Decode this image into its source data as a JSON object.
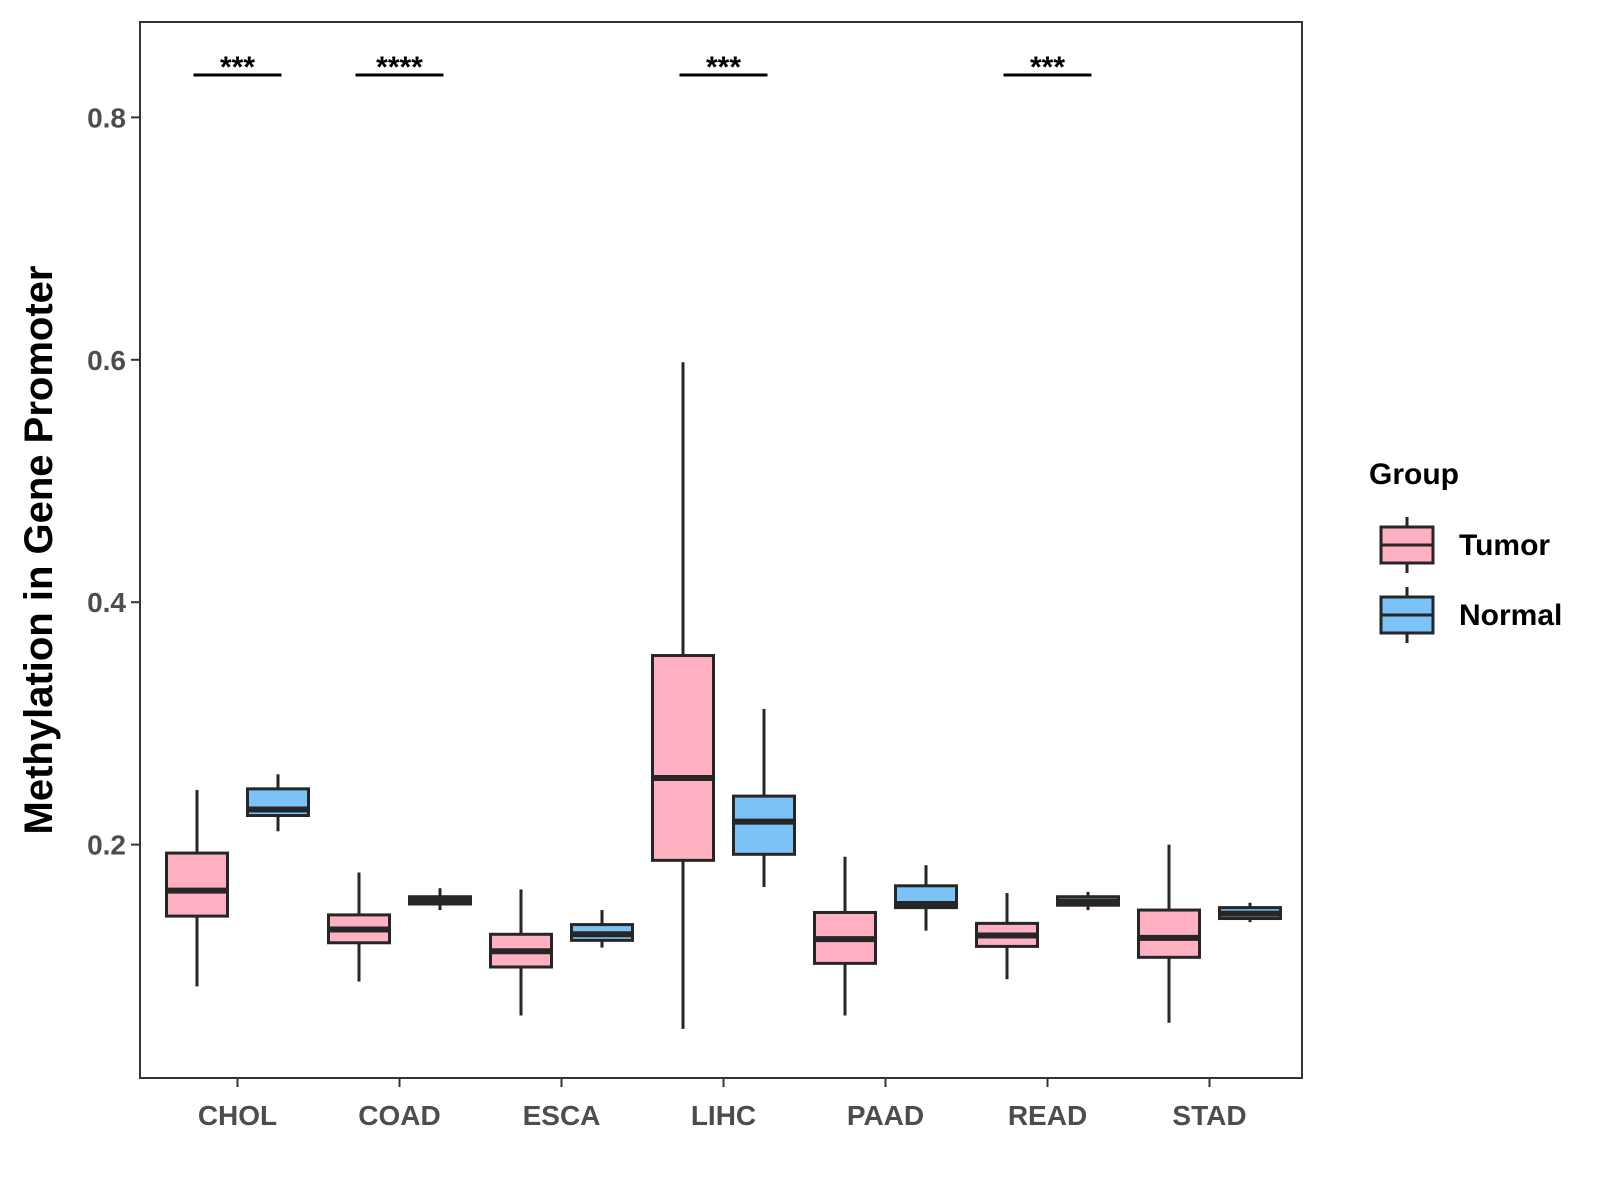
{
  "chart_data": {
    "type": "boxplot",
    "title": "",
    "xlabel": "",
    "ylabel": "Methylation in Gene Promoter",
    "ylim": [
      0.0,
      0.875
    ],
    "yticks": [
      0.2,
      0.4,
      0.6,
      0.8
    ],
    "ytick_labels": [
      "0.2",
      "0.4",
      "0.6",
      "0.8"
    ],
    "categories": [
      "CHOL",
      "COAD",
      "ESCA",
      "LIHC",
      "PAAD",
      "READ",
      "STAD"
    ],
    "grid": false,
    "legend": {
      "title": "Group",
      "position": "right",
      "entries": [
        {
          "name": "Tumor",
          "color": "#FFB0C1"
        },
        {
          "name": "Normal",
          "color": "#7AC2F8"
        }
      ]
    },
    "series": [
      {
        "name": "Tumor",
        "color": "#FFB0C1",
        "boxes": [
          {
            "category": "CHOL",
            "whisker_low": 0.083,
            "q1": 0.141,
            "median": 0.162,
            "q3": 0.193,
            "whisker_high": 0.245
          },
          {
            "category": "COAD",
            "whisker_low": 0.087,
            "q1": 0.119,
            "median": 0.13,
            "q3": 0.142,
            "whisker_high": 0.177
          },
          {
            "category": "ESCA",
            "whisker_low": 0.059,
            "q1": 0.099,
            "median": 0.112,
            "q3": 0.126,
            "whisker_high": 0.163
          },
          {
            "category": "LIHC",
            "whisker_low": 0.048,
            "q1": 0.187,
            "median": 0.255,
            "q3": 0.356,
            "whisker_high": 0.598
          },
          {
            "category": "PAAD",
            "whisker_low": 0.059,
            "q1": 0.102,
            "median": 0.122,
            "q3": 0.144,
            "whisker_high": 0.19
          },
          {
            "category": "READ",
            "whisker_low": 0.089,
            "q1": 0.116,
            "median": 0.125,
            "q3": 0.135,
            "whisker_high": 0.16
          },
          {
            "category": "STAD",
            "whisker_low": 0.053,
            "q1": 0.107,
            "median": 0.123,
            "q3": 0.146,
            "whisker_high": 0.2
          }
        ]
      },
      {
        "name": "Normal",
        "color": "#7AC2F8",
        "boxes": [
          {
            "category": "CHOL",
            "whisker_low": 0.211,
            "q1": 0.224,
            "median": 0.229,
            "q3": 0.246,
            "whisker_high": 0.258
          },
          {
            "category": "COAD",
            "whisker_low": 0.146,
            "q1": 0.151,
            "median": 0.154,
            "q3": 0.157,
            "whisker_high": 0.164
          },
          {
            "category": "ESCA",
            "whisker_low": 0.115,
            "q1": 0.121,
            "median": 0.126,
            "q3": 0.134,
            "whisker_high": 0.146
          },
          {
            "category": "LIHC",
            "whisker_low": 0.165,
            "q1": 0.192,
            "median": 0.219,
            "q3": 0.24,
            "whisker_high": 0.312
          },
          {
            "category": "PAAD",
            "whisker_low": 0.129,
            "q1": 0.148,
            "median": 0.151,
            "q3": 0.166,
            "whisker_high": 0.183
          },
          {
            "category": "READ",
            "whisker_low": 0.146,
            "q1": 0.15,
            "median": 0.153,
            "q3": 0.157,
            "whisker_high": 0.161
          },
          {
            "category": "STAD",
            "whisker_low": 0.136,
            "q1": 0.139,
            "median": 0.143,
            "q3": 0.148,
            "whisker_high": 0.152
          }
        ]
      }
    ],
    "annotations": [
      {
        "category": "CHOL",
        "label": "***",
        "y": 0.835
      },
      {
        "category": "COAD",
        "label": "****",
        "y": 0.835
      },
      {
        "category": "LIHC",
        "label": "***",
        "y": 0.835
      },
      {
        "category": "READ",
        "label": "***",
        "y": 0.835
      }
    ]
  }
}
